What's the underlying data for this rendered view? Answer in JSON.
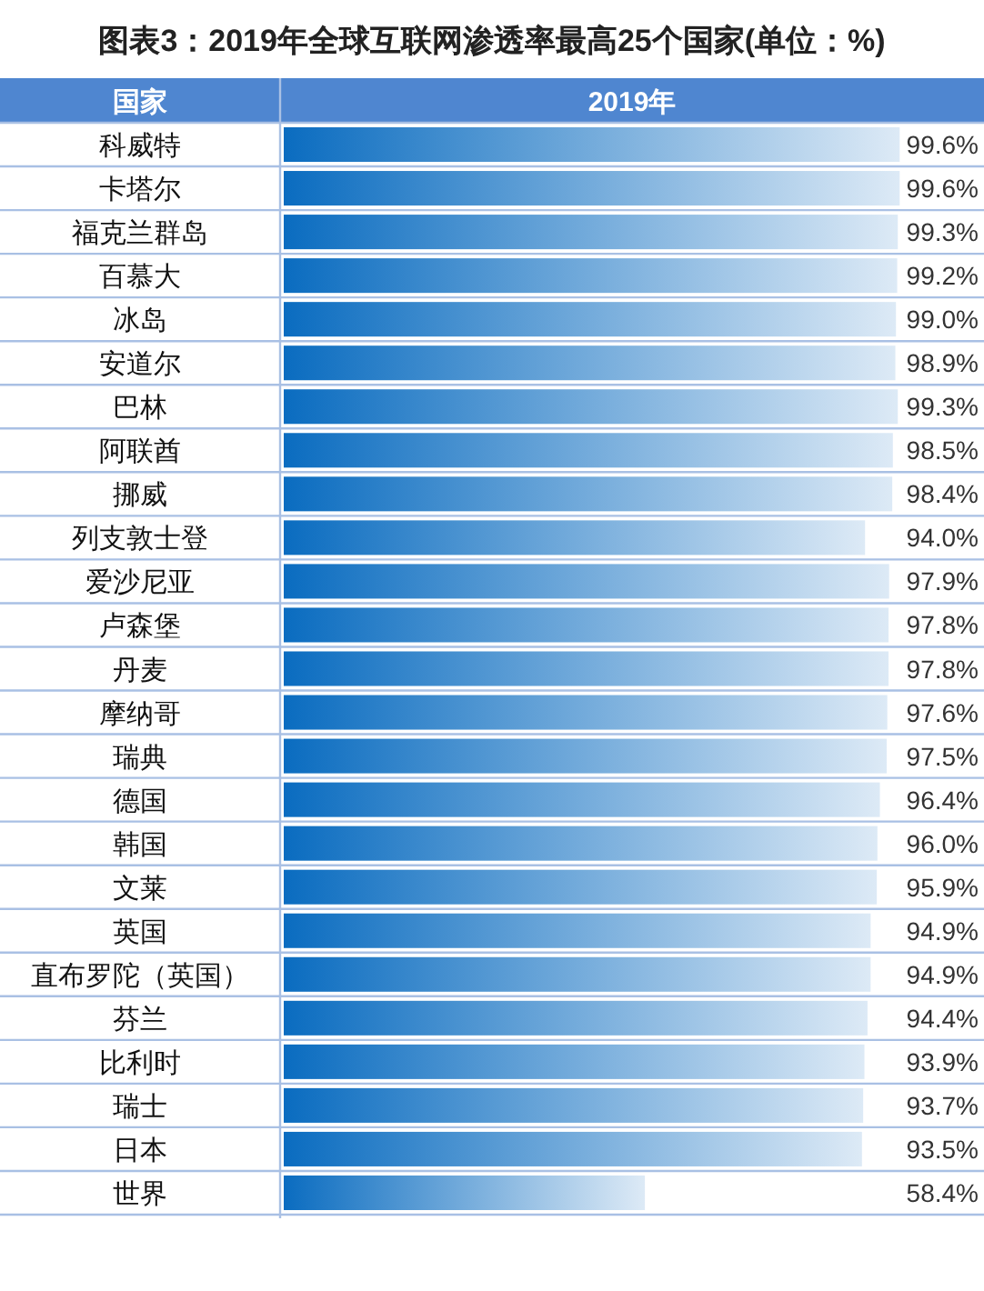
{
  "chart_data": {
    "type": "bar",
    "orientation": "horizontal",
    "title": "图表3：2019年全球互联网渗透率最高25个国家(单位：%)",
    "ylabel": "国家",
    "xlabel": "2019年",
    "categories": [
      "科威特",
      "卡塔尔",
      "福克兰群岛",
      "百慕大",
      "冰岛",
      "安道尔",
      "巴林",
      "阿联酋",
      "挪威",
      "列支敦士登",
      "爱沙尼亚",
      "卢森堡",
      "丹麦",
      "摩纳哥",
      "瑞典",
      "德国",
      "韩国",
      "文莱",
      "英国",
      "直布罗陀（英国）",
      "芬兰",
      "比利时",
      "瑞士",
      "日本",
      "世界"
    ],
    "values": [
      99.6,
      99.6,
      99.3,
      99.2,
      99.0,
      98.9,
      99.3,
      98.5,
      98.4,
      94.0,
      97.9,
      97.8,
      97.8,
      97.6,
      97.5,
      96.4,
      96.0,
      95.9,
      94.9,
      94.9,
      94.4,
      93.9,
      93.7,
      93.5,
      58.4
    ],
    "value_labels": [
      "99.6%",
      "99.6%",
      "99.3%",
      "99.2%",
      "99.0%",
      "98.9%",
      "99.3%",
      "98.5%",
      "98.4%",
      "94.0%",
      "97.9%",
      "97.8%",
      "97.8%",
      "97.6%",
      "97.5%",
      "96.4%",
      "96.0%",
      "95.9%",
      "94.9%",
      "94.9%",
      "94.4%",
      "93.9%",
      "93.7%",
      "93.5%",
      "58.4%"
    ],
    "color": "#0a6cc0",
    "xlim": [
      0,
      100
    ],
    "tick_labels": "y",
    "grid": "y"
  }
}
